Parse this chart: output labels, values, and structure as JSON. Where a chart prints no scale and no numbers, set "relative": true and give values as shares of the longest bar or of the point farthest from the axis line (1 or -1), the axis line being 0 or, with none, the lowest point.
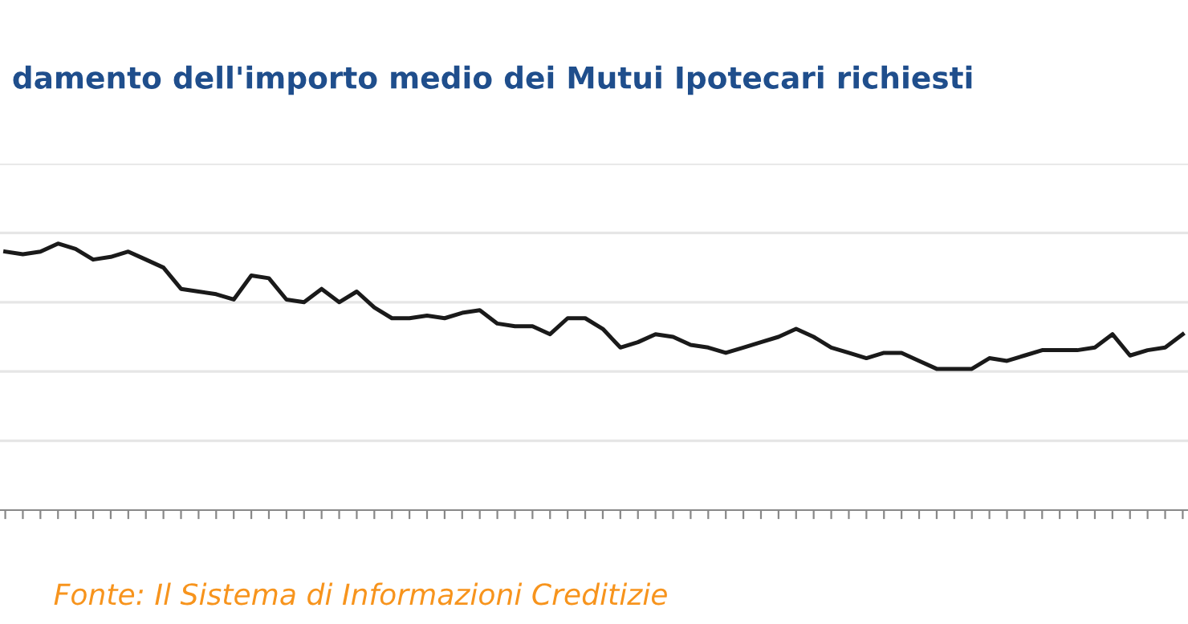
{
  "chart_data": {
    "type": "line",
    "title": "damento dell'importo medio dei Mutui Ipotecari richiesti",
    "relative": true,
    "grid": "y",
    "legend": false,
    "marker": "none",
    "line_style": "solid",
    "annotations": [
      "Fonte: Il Sistema di Informazioni Creditizie"
    ],
    "categories": [
      null,
      null,
      null,
      null,
      null,
      null,
      null,
      null,
      null,
      null,
      null,
      null,
      null,
      null,
      null,
      null,
      null,
      null,
      null,
      null,
      null,
      null,
      null,
      null,
      null,
      null,
      null,
      null,
      null,
      null,
      null,
      null,
      null,
      null,
      null,
      null,
      null,
      null,
      null,
      null,
      null,
      null,
      null,
      null,
      null,
      null,
      null,
      null,
      null,
      null,
      null,
      null,
      null,
      null,
      null,
      null,
      null,
      null,
      null,
      null,
      null,
      null,
      null,
      null,
      null,
      null,
      null,
      null
    ],
    "series": [
      {
        "color": "#1a1a1a",
        "values": [
          0.97,
          0.96,
          0.97,
          1.0,
          0.98,
          0.94,
          0.95,
          0.97,
          0.94,
          0.91,
          0.83,
          0.82,
          0.81,
          0.79,
          0.88,
          0.87,
          0.79,
          0.78,
          0.83,
          0.78,
          0.82,
          0.76,
          0.72,
          0.72,
          0.73,
          0.72,
          0.74,
          0.75,
          0.7,
          0.69,
          0.69,
          0.66,
          0.72,
          0.72,
          0.68,
          0.61,
          0.63,
          0.66,
          0.65,
          0.62,
          0.61,
          0.59,
          0.61,
          0.63,
          0.65,
          0.68,
          0.65,
          0.61,
          0.59,
          0.57,
          0.59,
          0.59,
          0.56,
          0.53,
          0.53,
          0.53,
          0.57,
          0.56,
          0.58,
          0.6,
          0.6,
          0.6,
          0.61,
          0.66,
          0.58,
          0.6,
          0.61,
          0.66
        ]
      }
    ]
  }
}
